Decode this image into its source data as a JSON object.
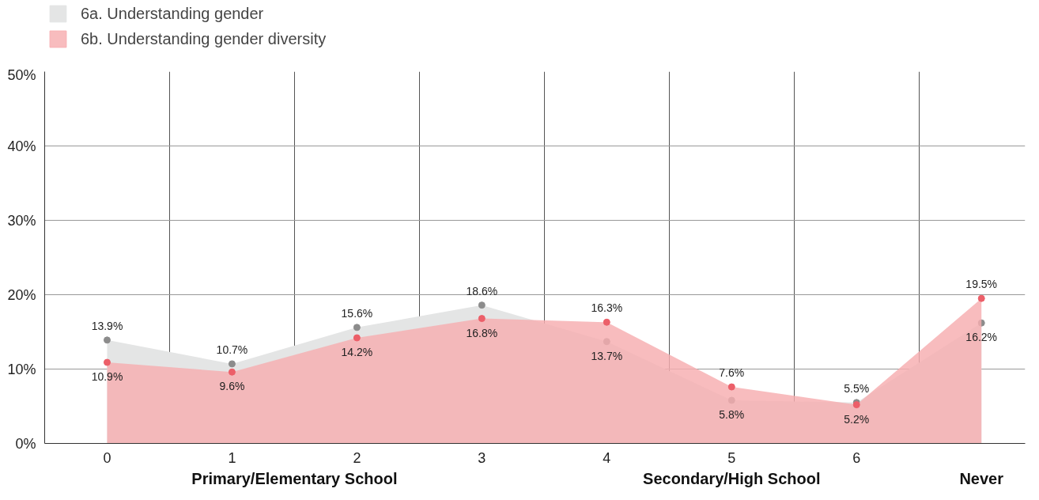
{
  "chart_data": {
    "type": "area",
    "categories": [
      "0",
      "1",
      "2",
      "3",
      "4",
      "5",
      "6",
      null
    ],
    "series": [
      {
        "name": "6a. Understanding gender",
        "color": "#e4e5e5",
        "values": [
          13.9,
          10.7,
          15.6,
          18.6,
          13.7,
          5.8,
          5.5,
          16.2
        ],
        "value_labels": [
          "13.9%",
          "10.7%",
          "15.6%",
          "18.6%",
          "13.7%",
          "5.8%",
          "5.5%",
          "16.2%"
        ]
      },
      {
        "name": "6b. Understanding gender diversity",
        "color": "#f7adb0",
        "values": [
          10.9,
          9.6,
          14.2,
          16.8,
          16.3,
          7.6,
          5.2,
          19.5
        ],
        "value_labels": [
          "10.9%",
          "9.6%",
          "14.2%",
          "16.8%",
          "16.3%",
          "7.6%",
          "5.2%",
          "19.5%"
        ]
      }
    ],
    "ylim": [
      0,
      50
    ],
    "yticks": [
      {
        "value": 0,
        "label": "0%"
      },
      {
        "value": 10,
        "label": "10%"
      },
      {
        "value": 20,
        "label": "20%"
      },
      {
        "value": 30,
        "label": "30%"
      },
      {
        "value": 40,
        "label": "40%"
      },
      {
        "value": 50,
        "label": "50%"
      }
    ],
    "marker": "circle",
    "grid": true,
    "legend": "top left",
    "annotations": [
      "Primary/Elementary School",
      "Secondary/High School",
      "Never"
    ]
  }
}
